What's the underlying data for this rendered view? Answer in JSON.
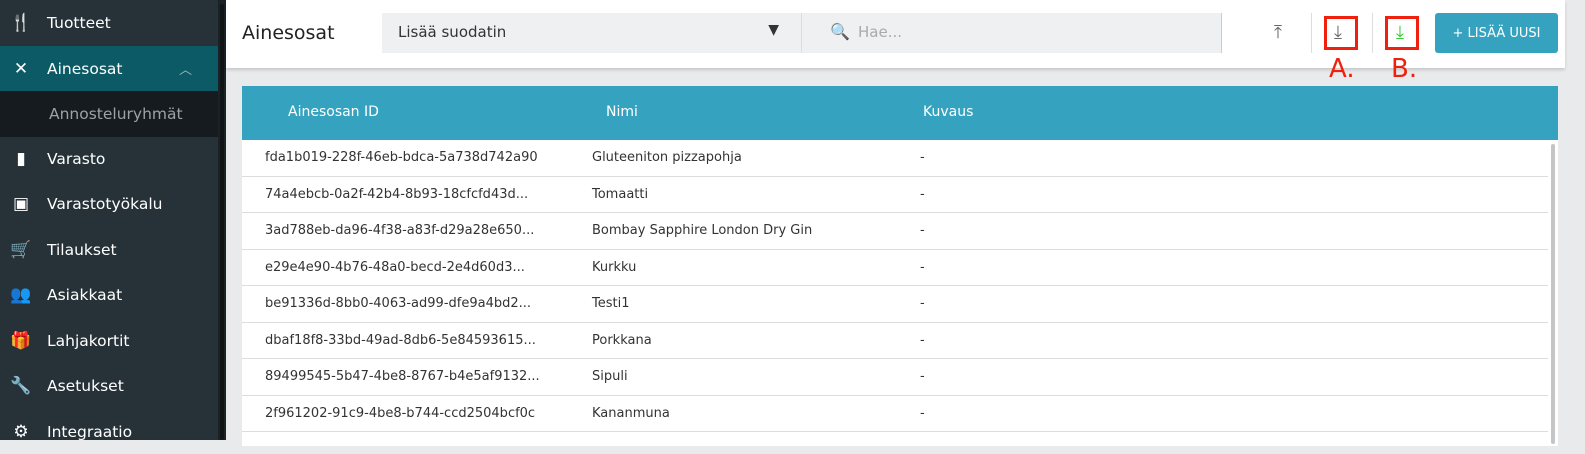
{
  "sidebar": {
    "items": [
      {
        "label": "Tuotteet",
        "icon": "utensils-icon"
      },
      {
        "label": "Ainesosat",
        "icon": "spoon-knife-icon",
        "active": true
      },
      {
        "label": "Annosteluryhmät",
        "sub": true
      },
      {
        "label": "Varasto",
        "icon": "bar-chart-icon"
      },
      {
        "label": "Varastotyökalu",
        "icon": "chart-box-icon"
      },
      {
        "label": "Tilaukset",
        "icon": "cart-icon"
      },
      {
        "label": "Asiakkaat",
        "icon": "people-icon"
      },
      {
        "label": "Lahjakortit",
        "icon": "gift-card-icon"
      },
      {
        "label": "Asetukset",
        "icon": "wrench-icon"
      },
      {
        "label": "Integraatio",
        "icon": "integration-icon"
      }
    ]
  },
  "header": {
    "title": "Ainesosat",
    "filter_label": "Lisää suodatin",
    "search_placeholder": "Hae...",
    "add_label": "+ LISÄÄ UUSI",
    "annotation_a": "A.",
    "annotation_b": "B.",
    "colors": {
      "accent": "#35a3bf",
      "highlight": "#f0200e",
      "download_b": "#2ecc2e"
    }
  },
  "table": {
    "columns": [
      "Ainesosan ID",
      "Nimi",
      "Kuvaus"
    ],
    "rows": [
      [
        "fda1b019-228f-46eb-bdca-5a738d742a90",
        "Gluteeniton pizzapohja",
        "-"
      ],
      [
        "74a4ebcb-0a2f-42b4-8b93-18cfcfd43d...",
        "Tomaatti",
        "-"
      ],
      [
        "3ad788eb-da96-4f38-a83f-d29a28e650...",
        "Bombay Sapphire London Dry Gin",
        "-"
      ],
      [
        "e29e4e90-4b76-48a0-becd-2e4d60d3...",
        "Kurkku",
        "-"
      ],
      [
        "be91336d-8bb0-4063-ad99-dfe9a4bd2...",
        "Testi1",
        "-"
      ],
      [
        "dbaf18f8-33bd-49ad-8db6-5e84593615...",
        "Porkkana",
        "-"
      ],
      [
        "89499545-5b47-4be8-8767-b4e5af9132...",
        "Sipuli",
        "-"
      ],
      [
        "2f961202-91c9-4be8-b744-ccd2504bcf0c",
        "Kananmuna",
        "-"
      ]
    ]
  }
}
